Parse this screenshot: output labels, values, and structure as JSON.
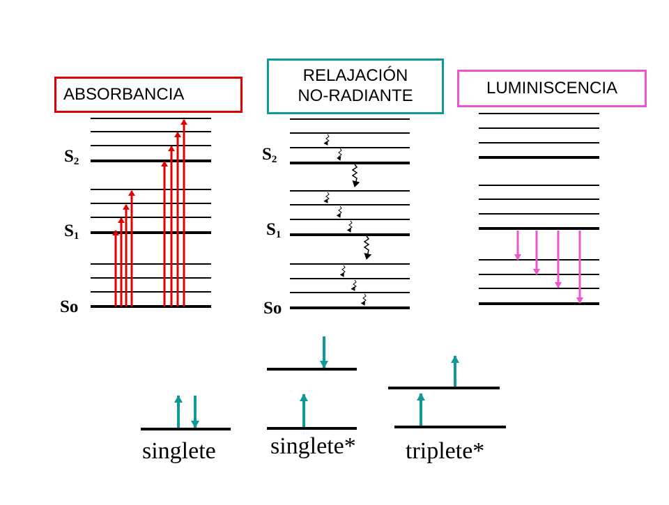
{
  "colors": {
    "absorption": "#e00000",
    "relaxation": "#000000",
    "luminescence": "#ee55cc",
    "spin": "#119999",
    "relax_box_border": "#119999"
  },
  "panels": {
    "absorbancia": {
      "title": "ABSORBANCIA",
      "labels": {
        "s2_base": "S",
        "s2_sub": "2",
        "s1_base": "S",
        "s1_sub": "1",
        "so": "So"
      }
    },
    "relajacion": {
      "title_line1": "RELAJACIÓN",
      "title_line2": "NO-RADIANTE",
      "labels": {
        "s2_base": "S",
        "s2_sub": "2",
        "s1_base": "S",
        "s1_sub": "1",
        "so": "So"
      }
    },
    "luminiscencia": {
      "title": "LUMINISCENCIA"
    }
  },
  "spin_states": {
    "singlete": "singlete",
    "singlete_excited": "singlete*",
    "triplete_excited": "triplete*"
  }
}
